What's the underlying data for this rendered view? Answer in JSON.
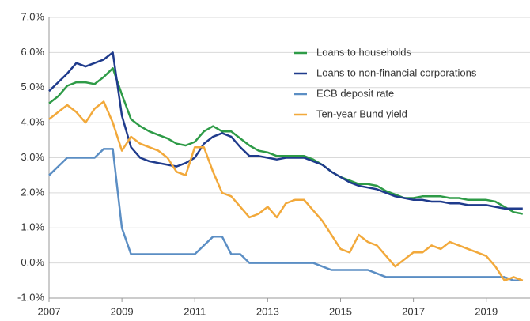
{
  "chart_data": {
    "type": "line",
    "x": [
      2007,
      2007.25,
      2007.5,
      2007.75,
      2008,
      2008.25,
      2008.5,
      2008.75,
      2009,
      2009.25,
      2009.5,
      2009.75,
      2010,
      2010.25,
      2010.5,
      2010.75,
      2011,
      2011.25,
      2011.5,
      2011.75,
      2012,
      2012.25,
      2012.5,
      2012.75,
      2013,
      2013.25,
      2013.5,
      2013.75,
      2014,
      2014.25,
      2014.5,
      2014.75,
      2015,
      2015.25,
      2015.5,
      2015.75,
      2016,
      2016.25,
      2016.5,
      2016.75,
      2017,
      2017.25,
      2017.5,
      2017.75,
      2018,
      2018.25,
      2018.5,
      2018.75,
      2019,
      2019.25,
      2019.5,
      2019.75,
      2020
    ],
    "series": [
      {
        "name": "Loans to households",
        "color": "#2e9b47",
        "values": [
          4.55,
          4.75,
          5.05,
          5.15,
          5.15,
          5.1,
          5.3,
          5.55,
          4.8,
          4.1,
          3.9,
          3.75,
          3.65,
          3.55,
          3.4,
          3.35,
          3.45,
          3.75,
          3.9,
          3.75,
          3.75,
          3.55,
          3.35,
          3.2,
          3.15,
          3.05,
          3.05,
          3.05,
          3.05,
          2.95,
          2.8,
          2.6,
          2.45,
          2.35,
          2.25,
          2.25,
          2.2,
          2.05,
          1.95,
          1.85,
          1.85,
          1.9,
          1.9,
          1.9,
          1.85,
          1.85,
          1.8,
          1.8,
          1.8,
          1.75,
          1.6,
          1.45,
          1.4
        ]
      },
      {
        "name": "Loans to non-financial corporations",
        "color": "#1f3b8c",
        "values": [
          4.9,
          5.15,
          5.4,
          5.7,
          5.6,
          5.7,
          5.8,
          6.0,
          4.2,
          3.3,
          3.0,
          2.9,
          2.85,
          2.8,
          2.75,
          2.85,
          3.0,
          3.4,
          3.6,
          3.7,
          3.6,
          3.3,
          3.05,
          3.05,
          3.0,
          2.95,
          3.0,
          3.0,
          3.0,
          2.9,
          2.8,
          2.6,
          2.45,
          2.3,
          2.2,
          2.15,
          2.1,
          2.0,
          1.9,
          1.85,
          1.8,
          1.8,
          1.75,
          1.75,
          1.7,
          1.7,
          1.65,
          1.65,
          1.65,
          1.6,
          1.55,
          1.55,
          1.55
        ]
      },
      {
        "name": "ECB deposit rate",
        "color": "#5b8ec4",
        "values": [
          2.5,
          2.75,
          3.0,
          3.0,
          3.0,
          3.0,
          3.25,
          3.25,
          1.0,
          0.25,
          0.25,
          0.25,
          0.25,
          0.25,
          0.25,
          0.25,
          0.25,
          0.5,
          0.75,
          0.75,
          0.25,
          0.25,
          0,
          0,
          0,
          0,
          0,
          0,
          0,
          0,
          -0.1,
          -0.2,
          -0.2,
          -0.2,
          -0.2,
          -0.2,
          -0.3,
          -0.4,
          -0.4,
          -0.4,
          -0.4,
          -0.4,
          -0.4,
          -0.4,
          -0.4,
          -0.4,
          -0.4,
          -0.4,
          -0.4,
          -0.4,
          -0.4,
          -0.5,
          -0.5
        ]
      },
      {
        "name": "Ten-year Bund yield",
        "color": "#f2a93b",
        "values": [
          4.1,
          4.3,
          4.5,
          4.3,
          4.0,
          4.4,
          4.6,
          4.0,
          3.2,
          3.6,
          3.4,
          3.3,
          3.2,
          3.0,
          2.6,
          2.5,
          3.3,
          3.3,
          2.6,
          2.0,
          1.9,
          1.6,
          1.3,
          1.4,
          1.6,
          1.3,
          1.7,
          1.8,
          1.8,
          1.5,
          1.2,
          0.8,
          0.4,
          0.3,
          0.8,
          0.6,
          0.5,
          0.2,
          -0.1,
          0.1,
          0.3,
          0.3,
          0.5,
          0.4,
          0.6,
          0.5,
          0.4,
          0.3,
          0.2,
          -0.1,
          -0.5,
          -0.4,
          -0.5
        ]
      }
    ],
    "xlim": [
      2007,
      2020.2
    ],
    "xticks": [
      2007,
      2009,
      2011,
      2013,
      2015,
      2017,
      2019
    ],
    "ylim": [
      -1,
      7
    ],
    "yticks": [
      {
        "value": -1,
        "label": "-1.0%"
      },
      {
        "value": 0,
        "label": "0.0%"
      },
      {
        "value": 1,
        "label": "1.0%"
      },
      {
        "value": 2,
        "label": "2.0%"
      },
      {
        "value": 3,
        "label": "3.0%"
      },
      {
        "value": 4,
        "label": "4.0%"
      },
      {
        "value": 5,
        "label": "5.0%"
      },
      {
        "value": 6,
        "label": "6.0%"
      },
      {
        "value": 7,
        "label": "7.0%"
      }
    ],
    "grid": true,
    "legend": "upper right"
  }
}
